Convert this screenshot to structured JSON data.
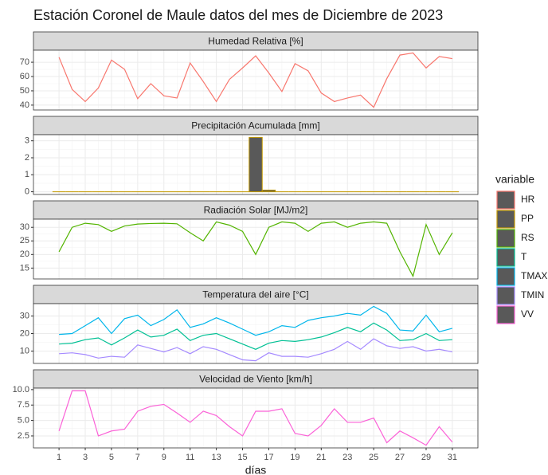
{
  "title": "Estación Coronel de Maule datos del mes de Diciembre de 2023",
  "x_label": "días",
  "legend_title": "variable",
  "x": [
    1,
    2,
    3,
    4,
    5,
    6,
    7,
    8,
    9,
    10,
    11,
    12,
    13,
    14,
    15,
    16,
    17,
    18,
    19,
    20,
    21,
    22,
    23,
    24,
    25,
    26,
    27,
    28,
    29,
    30,
    31
  ],
  "xlim": [
    -0.95,
    32.95
  ],
  "xticks": [
    1,
    3,
    5,
    7,
    9,
    11,
    13,
    15,
    17,
    19,
    21,
    23,
    25,
    27,
    29,
    31
  ],
  "grid": true,
  "chart_data": [
    {
      "type": "line",
      "title": "Humedad Relativa [%]",
      "ylim": [
        36.6,
        78.4
      ],
      "yticks": [
        40,
        50,
        60,
        70
      ],
      "series": [
        {
          "name": "HR",
          "color": "#F8766D",
          "values": [
            73.5,
            51,
            42.5,
            52,
            71.5,
            65,
            44.5,
            55,
            46.5,
            45,
            69.5,
            56.5,
            42.5,
            58,
            66,
            74.5,
            62.5,
            49.5,
            69,
            64,
            48.5,
            42.5,
            45,
            47,
            38.5,
            58.5,
            75,
            76.5,
            66,
            74,
            72.5
          ]
        }
      ]
    },
    {
      "type": "bar",
      "title": "Precipitación Acumulada [mm]",
      "ylim": [
        -0.16,
        3.36
      ],
      "yticks": [
        0,
        1,
        2,
        3
      ],
      "series": [
        {
          "name": "PP",
          "color": "#C49A00",
          "values": [
            0,
            0,
            0,
            0,
            0,
            0,
            0,
            0,
            0,
            0,
            0,
            0,
            0,
            0,
            0,
            3.2,
            0.1,
            0,
            0,
            0,
            0,
            0,
            0,
            0,
            0,
            0,
            0,
            0,
            0,
            0,
            0
          ]
        }
      ]
    },
    {
      "type": "line",
      "title": "Radiación Solar [MJ/m2]",
      "ylim": [
        11,
        33
      ],
      "yticks": [
        15,
        20,
        25,
        30
      ],
      "series": [
        {
          "name": "RS",
          "color": "#53B400",
          "values": [
            21,
            30,
            31.5,
            31,
            28.5,
            30.5,
            31.2,
            31.4,
            31.5,
            31.3,
            28,
            25,
            32,
            30.8,
            28.5,
            20,
            30,
            32,
            31.5,
            28.5,
            31.5,
            32,
            30,
            31.5,
            32,
            31.5,
            21,
            12,
            31,
            20,
            28
          ]
        }
      ]
    },
    {
      "type": "line",
      "title": "Temperatura del aire [°C]",
      "ylim": [
        2.95,
        37.05
      ],
      "yticks": [
        10,
        20,
        30
      ],
      "series": [
        {
          "name": "T",
          "color": "#00C094",
          "values": [
            14,
            14.5,
            16.5,
            17.5,
            13.5,
            17.5,
            22,
            18,
            19,
            22.5,
            16,
            19,
            20,
            17,
            14,
            11,
            14.5,
            16,
            15.5,
            16.5,
            18,
            20.5,
            23.5,
            21,
            26,
            22,
            16,
            16.5,
            20,
            16,
            16.5
          ]
        },
        {
          "name": "TMAX",
          "color": "#00B6EB",
          "values": [
            19.5,
            20,
            24.5,
            29,
            20,
            28.5,
            30.5,
            24.5,
            28,
            33.5,
            23.5,
            25.5,
            29,
            26,
            22.5,
            19,
            21,
            24.5,
            23.5,
            27.5,
            29,
            30,
            31.5,
            30.5,
            35.5,
            31.5,
            22,
            21.5,
            30.5,
            21,
            23
          ]
        },
        {
          "name": "TMIN",
          "color": "#A58AFF",
          "values": [
            8.5,
            9,
            8,
            6,
            7,
            6.5,
            13.5,
            11.5,
            9.5,
            12,
            8.5,
            12.5,
            11,
            8,
            5,
            4.5,
            9,
            7,
            7,
            6.5,
            8.5,
            11,
            15.5,
            11,
            17,
            13,
            11.5,
            12.5,
            10,
            11,
            9.5
          ]
        }
      ]
    },
    {
      "type": "line",
      "title": "Velocidad de Viento [km/h]",
      "ylim": [
        0.56,
        10.24
      ],
      "yticks": [
        2.5,
        {
          "value": 5,
          "label": "5.0"
        },
        7.5,
        {
          "value": 10,
          "label": "10.0"
        }
      ],
      "series": [
        {
          "name": "VV",
          "color": "#FB61D7",
          "values": [
            3.3,
            9.8,
            9.8,
            2.5,
            3.3,
            3.6,
            6.5,
            7.3,
            7.6,
            6.2,
            4.7,
            6.5,
            5.8,
            4.0,
            2.5,
            6.5,
            6.5,
            6.9,
            2.9,
            2.5,
            4.2,
            6.9,
            4.7,
            4.7,
            5.4,
            1.4,
            3.3,
            2.2,
            1.0,
            4.0,
            1.5
          ]
        }
      ]
    }
  ]
}
